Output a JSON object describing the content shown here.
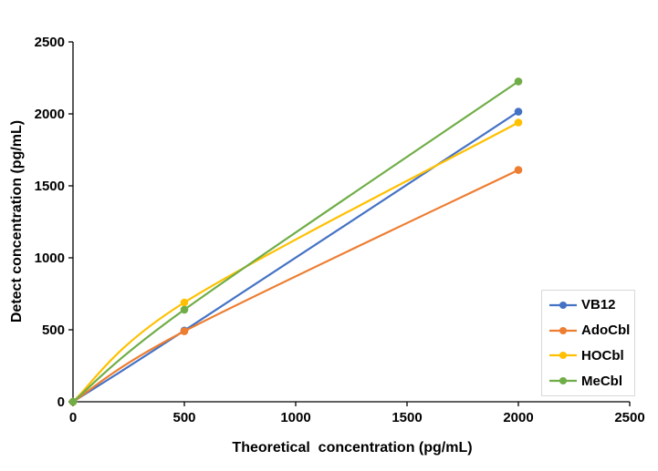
{
  "chart_data": {
    "type": "line",
    "xlabel": "Theoretical  concentration (pg/mL)",
    "ylabel": "Detect concentration (pg/mL)",
    "x": [
      0,
      500,
      2000
    ],
    "series": [
      {
        "name": "VB12",
        "color": "#4472C4",
        "values": [
          0,
          495,
          2015
        ]
      },
      {
        "name": "AdoCbl",
        "color": "#ED7D31",
        "values": [
          0,
          490,
          1610
        ]
      },
      {
        "name": "HOCbl",
        "color": "#FFC000",
        "values": [
          0,
          690,
          1940
        ]
      },
      {
        "name": "MeCbl",
        "color": "#70AD47",
        "values": [
          0,
          640,
          2225
        ]
      }
    ],
    "xlim": [
      0,
      2500
    ],
    "ylim": [
      0,
      2500
    ],
    "x_ticks": [
      0,
      500,
      1000,
      1500,
      2000,
      2500
    ],
    "y_ticks": [
      0,
      500,
      1000,
      1500,
      2000,
      2500
    ],
    "grid": false,
    "line_style": "smooth",
    "marker": "circle",
    "legend_position": "inside-right-bottom",
    "axis_color": "#000000",
    "legend_border_color": "#D9D9D9",
    "background": "#FFFFFF"
  }
}
